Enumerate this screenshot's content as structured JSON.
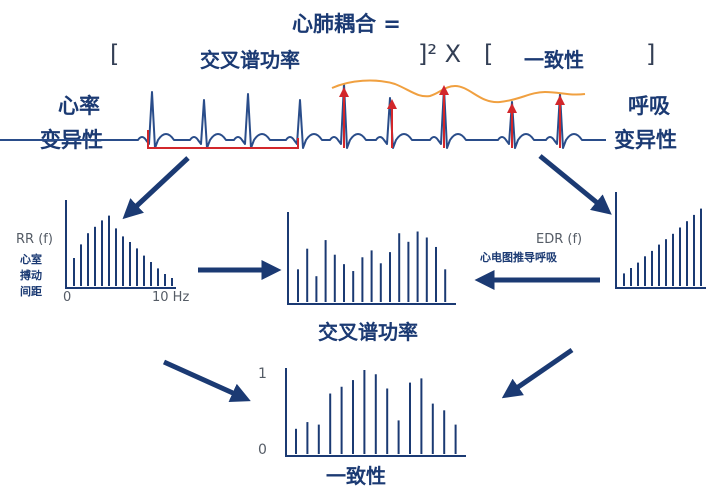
{
  "formula": {
    "title": "心肺耦合 =",
    "bracket_open_1": "[",
    "term_1": "交叉谱功率",
    "bracket_close_power": "]² X",
    "bracket_open_2": "[",
    "term_2": "一致性",
    "bracket_close_2": "]"
  },
  "left_side": {
    "label_line1": "心率",
    "label_line2": "变异性"
  },
  "right_side": {
    "label_line1": "呼吸",
    "label_line2": "变异性"
  },
  "rr_spectrum": {
    "axis_label": "RR (f)",
    "desc_line1": "心室",
    "desc_line2": "搏动",
    "desc_line3": "间距",
    "x_min_label": "0",
    "x_max_label": "10 Hz",
    "values": [
      0.35,
      0.52,
      0.66,
      0.74,
      0.82,
      0.88,
      0.72,
      0.62,
      0.55,
      0.47,
      0.38,
      0.3,
      0.22,
      0.15,
      0.1
    ]
  },
  "edr_spectrum": {
    "axis_label": "EDR (f)",
    "desc": "心电图推导呼吸",
    "values": [
      0.14,
      0.2,
      0.26,
      0.33,
      0.39,
      0.46,
      0.52,
      0.58,
      0.65,
      0.72,
      0.79,
      0.86
    ]
  },
  "cross_spectrum": {
    "label": "交叉谱功率",
    "values": [
      0.38,
      0.62,
      0.3,
      0.72,
      0.55,
      0.44,
      0.36,
      0.52,
      0.6,
      0.45,
      0.58,
      0.8,
      0.7,
      0.82,
      0.75,
      0.64,
      0.38
    ]
  },
  "coherence": {
    "label": "一致性",
    "y_top_label": "1",
    "y_bottom_label": "0",
    "values": [
      0.3,
      0.38,
      0.35,
      0.72,
      0.8,
      0.88,
      1.0,
      0.95,
      0.78,
      0.4,
      0.85,
      0.9,
      0.6,
      0.52,
      0.35
    ]
  },
  "colors": {
    "navy": "#1b3a73",
    "red": "#d2272b",
    "orange": "#f0a040"
  }
}
